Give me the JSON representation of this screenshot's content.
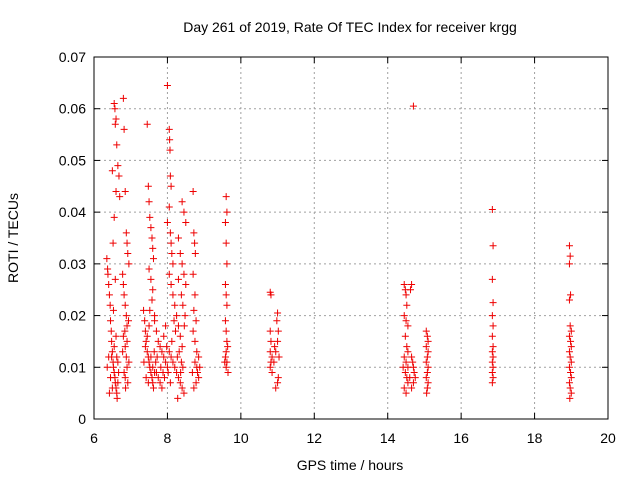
{
  "chart_data": {
    "type": "scatter",
    "title": "Day 261 of 2019, Rate Of TEC Index for receiver krgg",
    "xlabel": "GPS time / hours",
    "ylabel": "ROTI / TECUs",
    "xlim": [
      6,
      20
    ],
    "ylim": [
      0,
      0.07
    ],
    "xticks": [
      "6",
      "8",
      "10",
      "12",
      "14",
      "16",
      "18",
      "20"
    ],
    "yticks": [
      "0",
      "0.01",
      "0.02",
      "0.03",
      "0.04",
      "0.05",
      "0.06",
      "0.07"
    ],
    "grid": true,
    "marker": "+",
    "color": "#ee0000",
    "series": [
      {
        "name": "ROTI",
        "points": [
          [
            6.35,
            0.031
          ],
          [
            6.37,
            0.029
          ],
          [
            6.38,
            0.028
          ],
          [
            6.4,
            0.026
          ],
          [
            6.42,
            0.024
          ],
          [
            6.44,
            0.022
          ],
          [
            6.45,
            0.019
          ],
          [
            6.47,
            0.017
          ],
          [
            6.48,
            0.015
          ],
          [
            6.5,
            0.013
          ],
          [
            6.52,
            0.011
          ],
          [
            6.53,
            0.01
          ],
          [
            6.55,
            0.009
          ],
          [
            6.57,
            0.008
          ],
          [
            6.58,
            0.007
          ],
          [
            6.6,
            0.006
          ],
          [
            6.62,
            0.005
          ],
          [
            6.63,
            0.004
          ],
          [
            6.65,
            0.007
          ],
          [
            6.67,
            0.009
          ],
          [
            6.4,
            0.012
          ],
          [
            6.45,
            0.008
          ],
          [
            6.5,
            0.006
          ],
          [
            6.55,
            0.014
          ],
          [
            6.6,
            0.016
          ],
          [
            6.65,
            0.011
          ],
          [
            6.42,
            0.005
          ],
          [
            6.48,
            0.012
          ],
          [
            6.36,
            0.01
          ],
          [
            6.62,
            0.012
          ],
          [
            6.5,
            0.048
          ],
          [
            6.55,
            0.039
          ],
          [
            6.52,
            0.034
          ],
          [
            6.6,
            0.044
          ],
          [
            6.58,
            0.027
          ],
          [
            6.53,
            0.021
          ],
          [
            6.55,
            0.061
          ],
          [
            6.57,
            0.06
          ],
          [
            6.6,
            0.058
          ],
          [
            6.58,
            0.057
          ],
          [
            6.62,
            0.053
          ],
          [
            6.65,
            0.049
          ],
          [
            6.68,
            0.047
          ],
          [
            6.7,
            0.043
          ],
          [
            6.8,
            0.062
          ],
          [
            6.82,
            0.056
          ],
          [
            6.85,
            0.044
          ],
          [
            6.88,
            0.036
          ],
          [
            6.9,
            0.034
          ],
          [
            6.92,
            0.032
          ],
          [
            6.95,
            0.03
          ],
          [
            6.78,
            0.028
          ],
          [
            6.8,
            0.026
          ],
          [
            6.82,
            0.024
          ],
          [
            6.85,
            0.022
          ],
          [
            6.88,
            0.02
          ],
          [
            6.9,
            0.018
          ],
          [
            6.8,
            0.016
          ],
          [
            6.85,
            0.014
          ],
          [
            6.88,
            0.012
          ],
          [
            6.9,
            0.01
          ],
          [
            6.82,
            0.009
          ],
          [
            6.85,
            0.008
          ],
          [
            6.92,
            0.007
          ],
          [
            6.95,
            0.011
          ],
          [
            6.78,
            0.013
          ],
          [
            6.86,
            0.006
          ],
          [
            6.9,
            0.015
          ],
          [
            6.84,
            0.017
          ],
          [
            6.94,
            0.019
          ],
          [
            7.35,
            0.021
          ],
          [
            7.38,
            0.019
          ],
          [
            7.4,
            0.017
          ],
          [
            7.42,
            0.015
          ],
          [
            7.45,
            0.013
          ],
          [
            7.48,
            0.012
          ],
          [
            7.5,
            0.011
          ],
          [
            7.52,
            0.01
          ],
          [
            7.55,
            0.009
          ],
          [
            7.58,
            0.008
          ],
          [
            7.6,
            0.007
          ],
          [
            7.62,
            0.006
          ],
          [
            7.4,
            0.014
          ],
          [
            7.45,
            0.016
          ],
          [
            7.5,
            0.018
          ],
          [
            7.55,
            0.012
          ],
          [
            7.6,
            0.01
          ],
          [
            7.65,
            0.009
          ],
          [
            7.42,
            0.008
          ],
          [
            7.48,
            0.007
          ],
          [
            7.36,
            0.011
          ],
          [
            7.64,
            0.013
          ],
          [
            7.45,
            0.057
          ],
          [
            7.48,
            0.045
          ],
          [
            7.5,
            0.042
          ],
          [
            7.52,
            0.039
          ],
          [
            7.55,
            0.037
          ],
          [
            7.58,
            0.035
          ],
          [
            7.6,
            0.033
          ],
          [
            7.62,
            0.031
          ],
          [
            7.5,
            0.029
          ],
          [
            7.55,
            0.027
          ],
          [
            7.6,
            0.025
          ],
          [
            7.58,
            0.023
          ],
          [
            7.52,
            0.021
          ],
          [
            7.65,
            0.02
          ],
          [
            7.65,
            0.019
          ],
          [
            7.7,
            0.017
          ],
          [
            7.75,
            0.015
          ],
          [
            7.8,
            0.014
          ],
          [
            7.85,
            0.013
          ],
          [
            7.9,
            0.012
          ],
          [
            7.95,
            0.011
          ],
          [
            8.0,
            0.01
          ],
          [
            7.7,
            0.009
          ],
          [
            7.75,
            0.008
          ],
          [
            7.8,
            0.007
          ],
          [
            7.85,
            0.006
          ],
          [
            7.9,
            0.016
          ],
          [
            7.95,
            0.018
          ],
          [
            7.72,
            0.012
          ],
          [
            7.88,
            0.009
          ],
          [
            7.98,
            0.014
          ],
          [
            7.68,
            0.011
          ],
          [
            7.82,
            0.01
          ],
          [
            7.92,
            0.008
          ],
          [
            8.0,
            0.0645
          ],
          [
            8.05,
            0.056
          ],
          [
            8.06,
            0.054
          ],
          [
            8.07,
            0.052
          ],
          [
            8.08,
            0.047
          ],
          [
            8.1,
            0.045
          ],
          [
            8.05,
            0.041
          ],
          [
            8.0,
            0.038
          ],
          [
            8.08,
            0.036
          ],
          [
            8.1,
            0.034
          ],
          [
            8.12,
            0.032
          ],
          [
            8.15,
            0.03
          ],
          [
            8.05,
            0.028
          ],
          [
            8.1,
            0.026
          ],
          [
            8.15,
            0.024
          ],
          [
            8.2,
            0.022
          ],
          [
            8.25,
            0.02
          ],
          [
            8.3,
            0.018
          ],
          [
            8.35,
            0.016
          ],
          [
            8.4,
            0.014
          ],
          [
            8.05,
            0.013
          ],
          [
            8.1,
            0.012
          ],
          [
            8.15,
            0.011
          ],
          [
            8.2,
            0.01
          ],
          [
            8.25,
            0.009
          ],
          [
            8.3,
            0.008
          ],
          [
            8.35,
            0.007
          ],
          [
            8.4,
            0.006
          ],
          [
            8.45,
            0.005
          ],
          [
            8.28,
            0.004
          ],
          [
            8.12,
            0.015
          ],
          [
            8.22,
            0.017
          ],
          [
            8.32,
            0.013
          ],
          [
            8.18,
            0.019
          ],
          [
            8.38,
            0.011
          ],
          [
            8.02,
            0.009
          ],
          [
            8.42,
            0.01
          ],
          [
            8.08,
            0.007
          ],
          [
            8.27,
            0.012
          ],
          [
            8.36,
            0.009
          ],
          [
            8.4,
            0.042
          ],
          [
            8.45,
            0.04
          ],
          [
            8.5,
            0.038
          ],
          [
            8.3,
            0.035
          ],
          [
            8.35,
            0.032
          ],
          [
            8.4,
            0.03
          ],
          [
            8.45,
            0.028
          ],
          [
            8.5,
            0.026
          ],
          [
            8.38,
            0.024
          ],
          [
            8.42,
            0.022
          ],
          [
            8.48,
            0.02
          ],
          [
            8.3,
            0.027
          ],
          [
            8.46,
            0.018
          ],
          [
            8.7,
            0.044
          ],
          [
            8.72,
            0.036
          ],
          [
            8.74,
            0.034
          ],
          [
            8.76,
            0.032
          ],
          [
            8.7,
            0.028
          ],
          [
            8.75,
            0.024
          ],
          [
            8.72,
            0.021
          ],
          [
            8.78,
            0.019
          ],
          [
            8.7,
            0.017
          ],
          [
            8.75,
            0.015
          ],
          [
            8.8,
            0.013
          ],
          [
            8.85,
            0.012
          ],
          [
            8.75,
            0.011
          ],
          [
            8.8,
            0.01
          ],
          [
            8.82,
            0.009
          ],
          [
            8.85,
            0.008
          ],
          [
            8.78,
            0.007
          ],
          [
            8.72,
            0.006
          ],
          [
            8.88,
            0.01
          ],
          [
            8.68,
            0.009
          ],
          [
            9.6,
            0.043
          ],
          [
            9.62,
            0.04
          ],
          [
            9.58,
            0.038
          ],
          [
            9.6,
            0.034
          ],
          [
            9.62,
            0.03
          ],
          [
            9.58,
            0.026
          ],
          [
            9.6,
            0.024
          ],
          [
            9.62,
            0.022
          ],
          [
            9.58,
            0.019
          ],
          [
            9.6,
            0.017
          ],
          [
            9.62,
            0.015
          ],
          [
            9.64,
            0.014
          ],
          [
            9.6,
            0.013
          ],
          [
            9.58,
            0.012
          ],
          [
            9.62,
            0.011
          ],
          [
            9.6,
            0.01
          ],
          [
            9.65,
            0.009
          ],
          [
            9.56,
            0.011
          ],
          [
            10.8,
            0.0245
          ],
          [
            10.82,
            0.024
          ],
          [
            10.8,
            0.017
          ],
          [
            10.82,
            0.015
          ],
          [
            10.8,
            0.013
          ],
          [
            10.85,
            0.012
          ],
          [
            10.82,
            0.011
          ],
          [
            10.8,
            0.01
          ],
          [
            10.85,
            0.009
          ],
          [
            10.9,
            0.011
          ],
          [
            10.95,
            0.013
          ],
          [
            11.0,
            0.015
          ],
          [
            11.02,
            0.017
          ],
          [
            10.98,
            0.019
          ],
          [
            11.0,
            0.0205
          ],
          [
            11.02,
            0.008
          ],
          [
            11.0,
            0.007
          ],
          [
            10.95,
            0.006
          ],
          [
            11.04,
            0.012
          ],
          [
            10.92,
            0.014
          ],
          [
            14.45,
            0.026
          ],
          [
            14.48,
            0.025
          ],
          [
            14.5,
            0.024
          ],
          [
            14.52,
            0.022
          ],
          [
            14.45,
            0.02
          ],
          [
            14.5,
            0.019
          ],
          [
            14.55,
            0.018
          ],
          [
            14.48,
            0.016
          ],
          [
            14.52,
            0.014
          ],
          [
            14.55,
            0.013
          ],
          [
            14.45,
            0.012
          ],
          [
            14.5,
            0.011
          ],
          [
            14.55,
            0.01
          ],
          [
            14.48,
            0.009
          ],
          [
            14.52,
            0.008
          ],
          [
            14.55,
            0.007
          ],
          [
            14.45,
            0.006
          ],
          [
            14.5,
            0.005
          ],
          [
            14.6,
            0.008
          ],
          [
            14.42,
            0.01
          ],
          [
            14.7,
            0.0605
          ],
          [
            14.65,
            0.026
          ],
          [
            14.62,
            0.025
          ],
          [
            14.65,
            0.012
          ],
          [
            14.68,
            0.011
          ],
          [
            14.7,
            0.01
          ],
          [
            14.72,
            0.009
          ],
          [
            14.75,
            0.008
          ],
          [
            14.7,
            0.007
          ],
          [
            14.65,
            0.006
          ],
          [
            15.05,
            0.017
          ],
          [
            15.08,
            0.016
          ],
          [
            15.1,
            0.015
          ],
          [
            15.05,
            0.014
          ],
          [
            15.1,
            0.013
          ],
          [
            15.08,
            0.012
          ],
          [
            15.05,
            0.011
          ],
          [
            15.1,
            0.01
          ],
          [
            15.08,
            0.009
          ],
          [
            15.05,
            0.008
          ],
          [
            15.1,
            0.007
          ],
          [
            15.08,
            0.006
          ],
          [
            15.06,
            0.005
          ],
          [
            16.85,
            0.0405
          ],
          [
            16.87,
            0.0335
          ],
          [
            16.85,
            0.027
          ],
          [
            16.87,
            0.0225
          ],
          [
            16.85,
            0.02
          ],
          [
            16.87,
            0.018
          ],
          [
            16.85,
            0.016
          ],
          [
            16.87,
            0.014
          ],
          [
            16.85,
            0.013
          ],
          [
            16.87,
            0.012
          ],
          [
            16.85,
            0.011
          ],
          [
            16.87,
            0.01
          ],
          [
            16.85,
            0.009
          ],
          [
            16.87,
            0.008
          ],
          [
            16.85,
            0.007
          ],
          [
            18.95,
            0.0335
          ],
          [
            18.97,
            0.0315
          ],
          [
            18.95,
            0.03
          ],
          [
            18.98,
            0.024
          ],
          [
            18.95,
            0.023
          ],
          [
            18.97,
            0.018
          ],
          [
            19.0,
            0.017
          ],
          [
            18.95,
            0.016
          ],
          [
            18.98,
            0.015
          ],
          [
            19.0,
            0.014
          ],
          [
            18.95,
            0.013
          ],
          [
            18.97,
            0.012
          ],
          [
            19.0,
            0.011
          ],
          [
            18.95,
            0.01
          ],
          [
            18.98,
            0.009
          ],
          [
            19.0,
            0.008
          ],
          [
            18.95,
            0.007
          ],
          [
            18.97,
            0.006
          ],
          [
            19.0,
            0.005
          ],
          [
            18.96,
            0.004
          ]
        ]
      }
    ]
  }
}
